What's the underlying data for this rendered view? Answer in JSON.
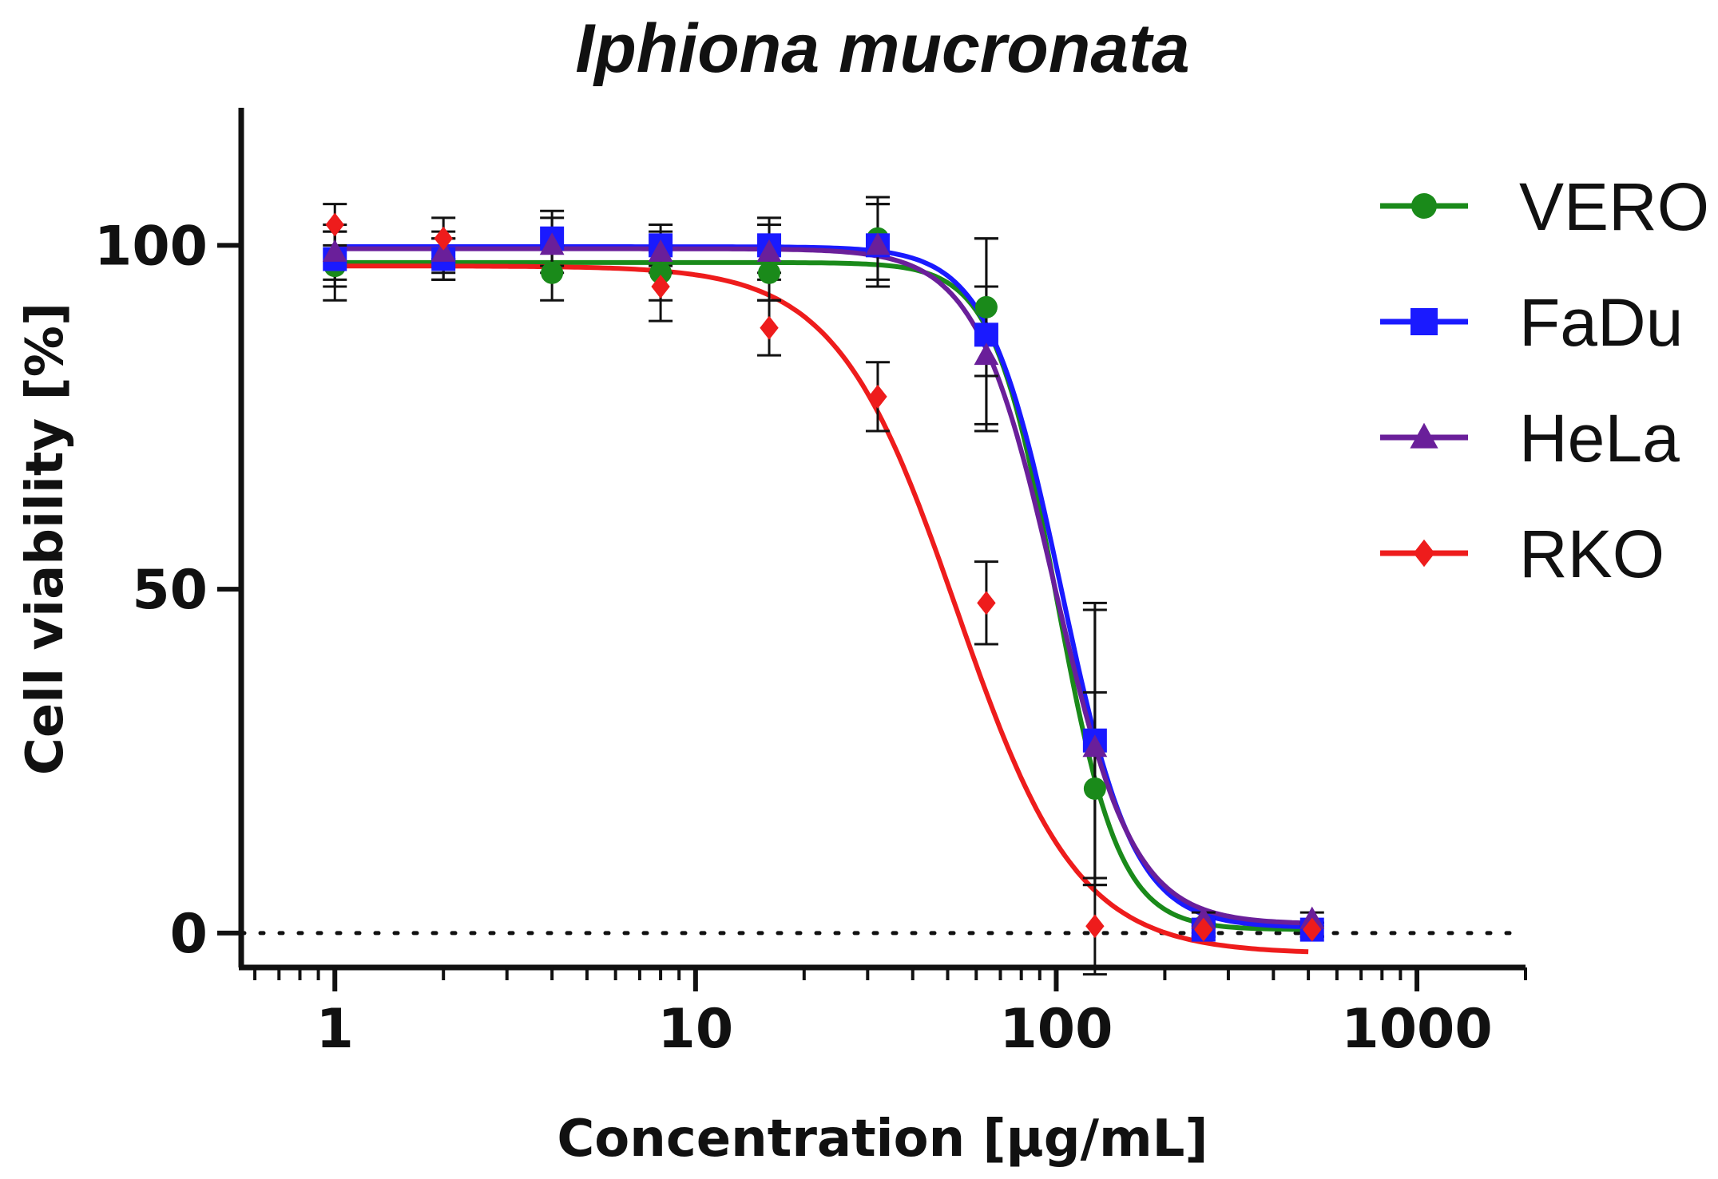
{
  "chart_data": {
    "type": "line",
    "title": "Iphiona mucronata",
    "xlabel": "Concentration [µg/mL]",
    "ylabel": "Cell viability [%]",
    "xscale": "log",
    "xlim": [
      0.55,
      2000
    ],
    "ylim": [
      -5,
      120
    ],
    "x_ticks": [
      {
        "value": 1,
        "label": "1"
      },
      {
        "value": 10,
        "label": "10"
      },
      {
        "value": 100,
        "label": "100"
      },
      {
        "value": 1000,
        "label": "1000"
      }
    ],
    "y_ticks": [
      {
        "value": 0,
        "label": "0"
      },
      {
        "value": 50,
        "label": "50"
      },
      {
        "value": 100,
        "label": "100"
      }
    ],
    "reference_line": {
      "y": 0,
      "style": "dotted"
    },
    "legend_position": "right",
    "series": [
      {
        "name": "VERO",
        "color": "#1a8a1a",
        "marker": "circle",
        "fit": {
          "bottom": 0.5,
          "top": 97.5,
          "ic50": 100,
          "hill": 5.0,
          "x_min": 1,
          "x_max": 500
        },
        "points": [
          {
            "x": 1,
            "y": 97,
            "err": 5
          },
          {
            "x": 2,
            "y": 98,
            "err": 3
          },
          {
            "x": 4,
            "y": 96,
            "err": 4
          },
          {
            "x": 8,
            "y": 96,
            "err": 4
          },
          {
            "x": 16,
            "y": 96,
            "err": 4
          },
          {
            "x": 32,
            "y": 101,
            "err": 6
          },
          {
            "x": 64,
            "y": 91,
            "err": 10
          },
          {
            "x": 128,
            "y": 21,
            "err": 14
          },
          {
            "x": 256,
            "y": 1,
            "err": 1
          },
          {
            "x": 512,
            "y": 0.5,
            "err": 1
          }
        ]
      },
      {
        "name": "FaDu",
        "color": "#1a1aff",
        "marker": "square",
        "fit": {
          "bottom": 0.8,
          "top": 99.8,
          "ic50": 103,
          "hill": 4.3,
          "x_min": 1,
          "x_max": 500
        },
        "points": [
          {
            "x": 1,
            "y": 98,
            "err": 4
          },
          {
            "x": 2,
            "y": 98,
            "err": 3
          },
          {
            "x": 4,
            "y": 101,
            "err": 4
          },
          {
            "x": 8,
            "y": 100,
            "err": 3
          },
          {
            "x": 16,
            "y": 100,
            "err": 4
          },
          {
            "x": 32,
            "y": 100,
            "err": 6
          },
          {
            "x": 64,
            "y": 87,
            "err": 14
          },
          {
            "x": 128,
            "y": 28,
            "err": 20
          },
          {
            "x": 256,
            "y": 0.5,
            "err": 1
          },
          {
            "x": 512,
            "y": 0.5,
            "err": 1
          }
        ]
      },
      {
        "name": "HeLa",
        "color": "#6a1f9a",
        "marker": "triangle",
        "fit": {
          "bottom": 1.3,
          "top": 99.5,
          "ic50": 99,
          "hill": 4.0,
          "x_min": 1,
          "x_max": 500
        },
        "points": [
          {
            "x": 1,
            "y": 99,
            "err": 4
          },
          {
            "x": 2,
            "y": 99,
            "err": 3
          },
          {
            "x": 4,
            "y": 100,
            "err": 4
          },
          {
            "x": 8,
            "y": 99,
            "err": 3
          },
          {
            "x": 16,
            "y": 99,
            "err": 4
          },
          {
            "x": 32,
            "y": 100,
            "err": 6
          },
          {
            "x": 64,
            "y": 84,
            "err": 10
          },
          {
            "x": 128,
            "y": 27,
            "err": 20
          },
          {
            "x": 256,
            "y": 2,
            "err": 1
          },
          {
            "x": 512,
            "y": 2,
            "err": 1
          }
        ]
      },
      {
        "name": "RKO",
        "color": "#ee1c1c",
        "marker": "diamond",
        "fit": {
          "bottom": -3,
          "top": 97,
          "ic50": 53,
          "hill": 2.6,
          "x_min": 1,
          "x_max": 500
        },
        "points": [
          {
            "x": 1,
            "y": 103,
            "err": 3
          },
          {
            "x": 2,
            "y": 101,
            "err": 3
          },
          {
            "x": 8,
            "y": 94,
            "err": 5
          },
          {
            "x": 16,
            "y": 88,
            "err": 4
          },
          {
            "x": 32,
            "y": 78,
            "err": 5
          },
          {
            "x": 64,
            "y": 48,
            "err": 6
          },
          {
            "x": 128,
            "y": 1,
            "err": 7
          },
          {
            "x": 256,
            "y": 0.5,
            "err": 1
          },
          {
            "x": 512,
            "y": 0.5,
            "err": 1
          }
        ]
      }
    ]
  }
}
